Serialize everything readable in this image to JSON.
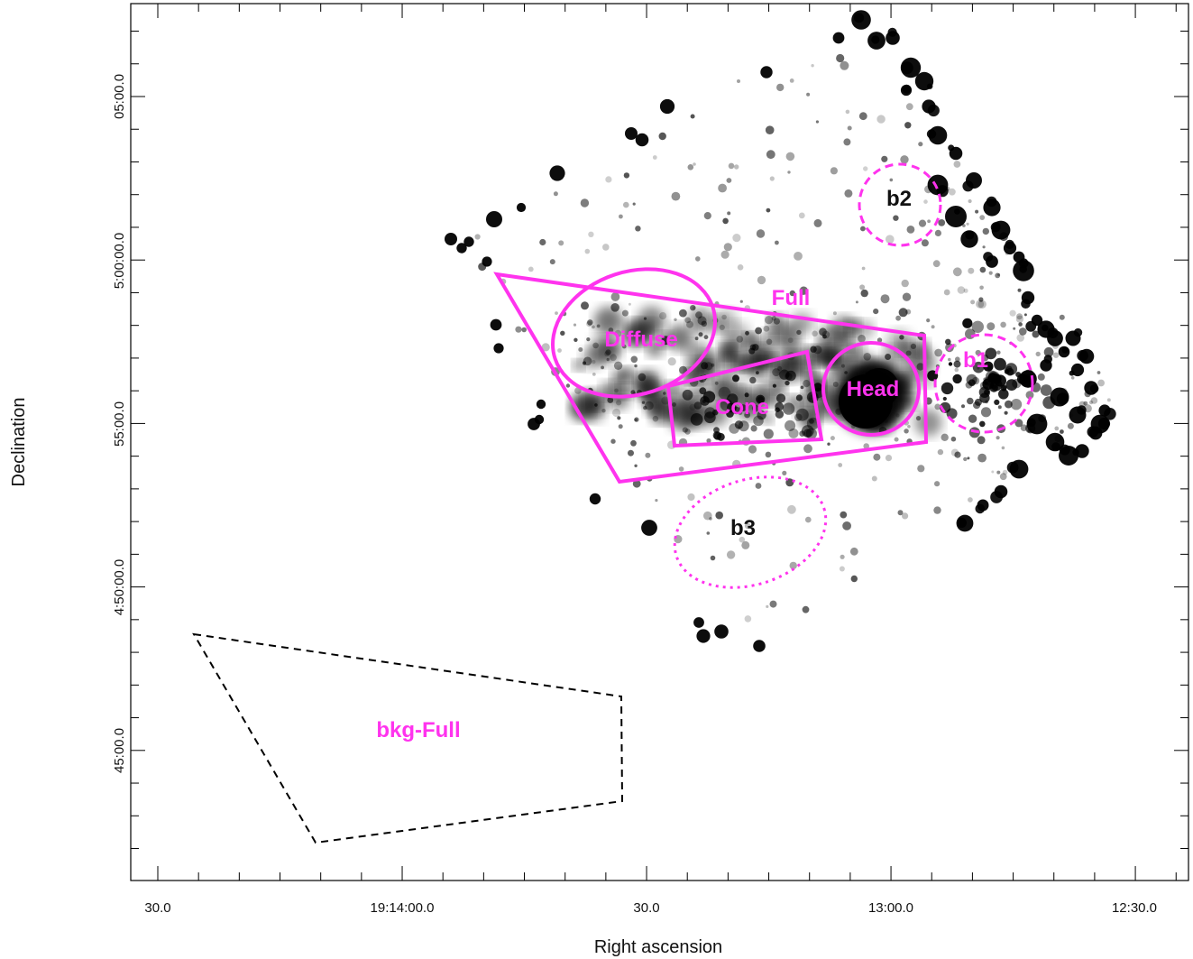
{
  "figure": {
    "x_axis_title": "Right ascension",
    "y_axis_title": "Declination",
    "x_tick_labels": [
      "30.0",
      "19:14:00.0",
      "30.0",
      "13:00.0",
      "12:30.0"
    ],
    "y_tick_labels": [
      "05:00.0",
      "5:00:00.0",
      "55:00.0",
      "4:50:00.0",
      "45:00.0"
    ]
  },
  "regions": {
    "full": "Full",
    "diffuse": "Diffuse",
    "cone": "Cone",
    "head": "Head",
    "b1": "b1",
    "b2": "b2",
    "b3": "b3",
    "bkg_full": "bkg-Full"
  },
  "colors": {
    "region": "#ff33ee",
    "source_label": "#ff33ee",
    "background_label": "#111111",
    "bkg_region": "#000000",
    "image_emission": "#000000"
  }
}
